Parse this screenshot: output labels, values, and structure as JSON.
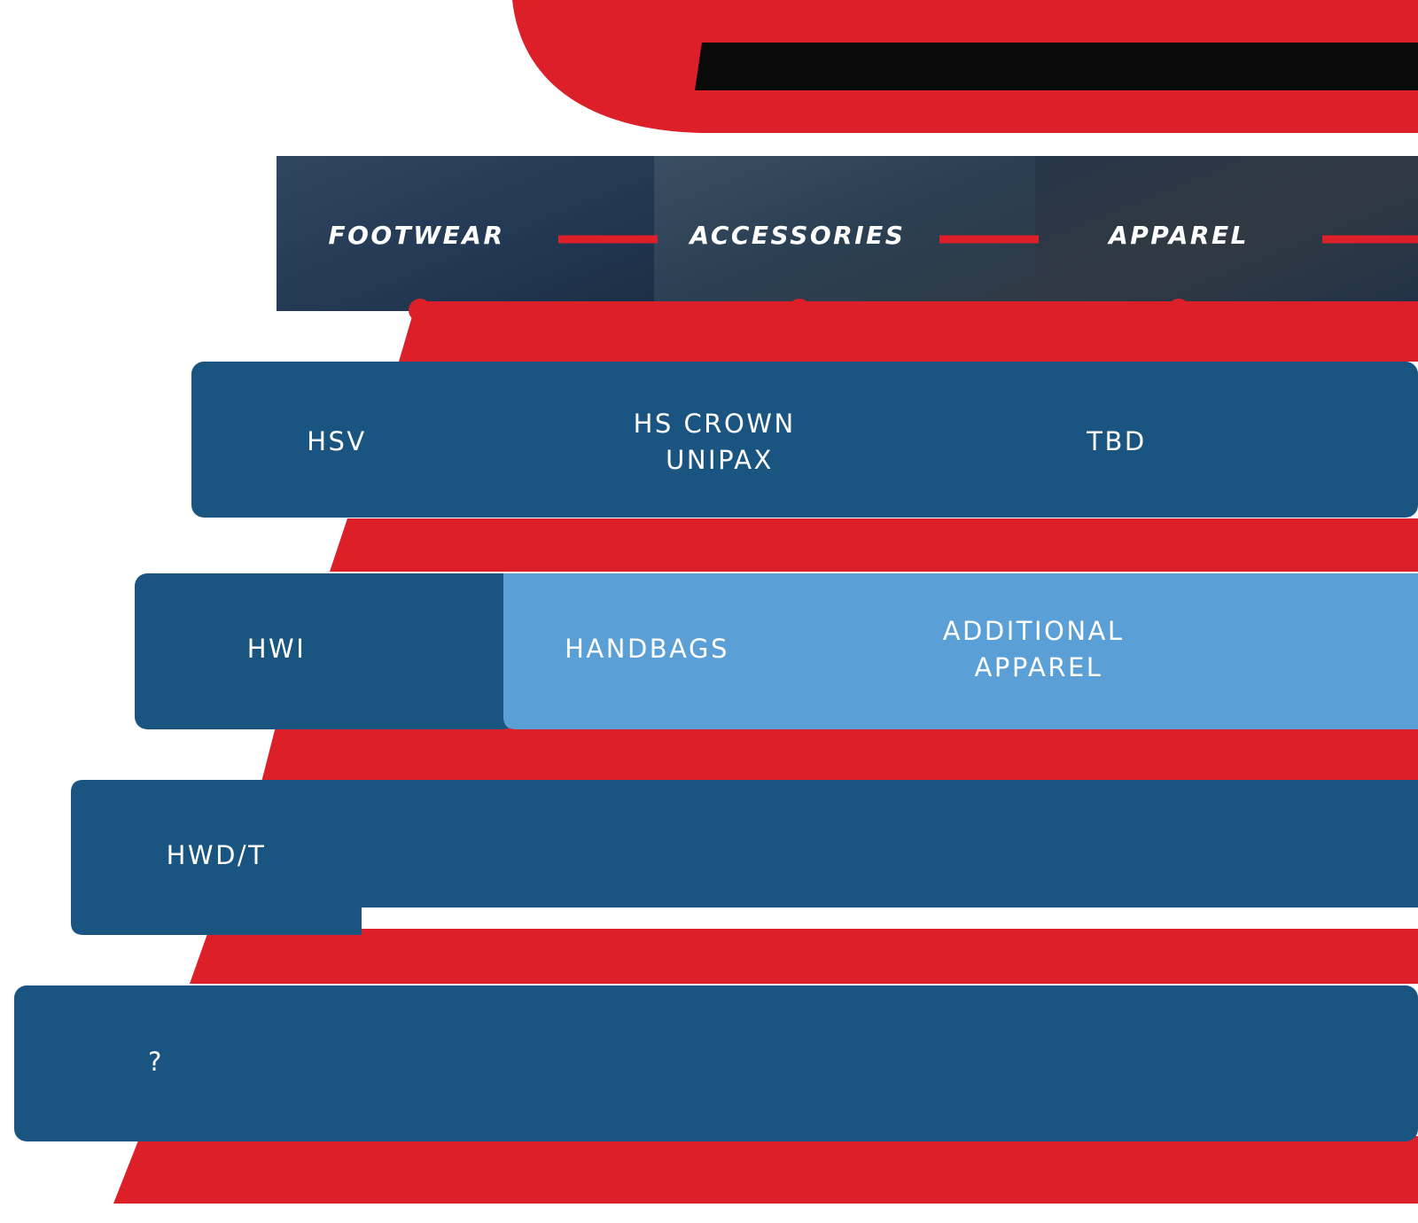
{
  "colors": {
    "red": "#dd1f2a",
    "dark_blue": "#1a5582",
    "light_blue": "#5a9fd6",
    "black": "#0a0a0a",
    "photo_tint": "#26384e"
  },
  "categories": [
    {
      "label": "FOOTWEAR"
    },
    {
      "label": "ACCESSORIES"
    },
    {
      "label": "APPAREL"
    }
  ],
  "rows": [
    {
      "cells": [
        {
          "lines": [
            "HSV"
          ]
        },
        {
          "lines": [
            "HS CROWN",
            "UNIPAX"
          ]
        },
        {
          "lines": [
            "TBD"
          ]
        }
      ]
    },
    {
      "cells": [
        {
          "lines": [
            "HWI"
          ]
        },
        {
          "lines": [
            "HANDBAGS"
          ]
        },
        {
          "lines": [
            "ADDITIONAL",
            "APPAREL"
          ]
        }
      ]
    },
    {
      "cells": [
        {
          "lines": [
            "HWD/T"
          ]
        }
      ]
    },
    {
      "cells": [
        {
          "lines": [
            "?"
          ]
        }
      ]
    }
  ]
}
